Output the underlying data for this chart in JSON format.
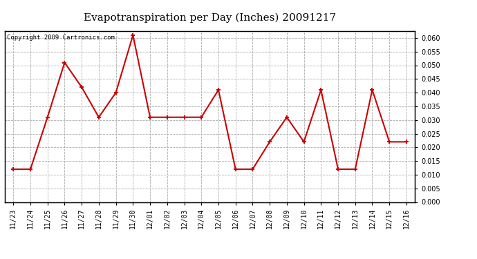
{
  "title": "Evapotranspiration per Day (Inches) 20091217",
  "copyright_text": "Copyright 2009 Cartronics.com",
  "x_labels": [
    "11/23",
    "11/24",
    "11/25",
    "11/26",
    "11/27",
    "11/28",
    "11/29",
    "11/30",
    "12/01",
    "12/02",
    "12/03",
    "12/04",
    "12/05",
    "12/06",
    "12/07",
    "12/08",
    "12/09",
    "12/10",
    "12/11",
    "12/12",
    "12/13",
    "12/14",
    "12/15",
    "12/16"
  ],
  "y_values": [
    0.012,
    0.012,
    0.031,
    0.051,
    0.042,
    0.031,
    0.04,
    0.061,
    0.031,
    0.031,
    0.031,
    0.031,
    0.041,
    0.012,
    0.012,
    0.022,
    0.031,
    0.022,
    0.041,
    0.012,
    0.012,
    0.041,
    0.022,
    0.022
  ],
  "line_color": "#cc0000",
  "marker": "+",
  "marker_size": 5,
  "marker_linewidth": 1.5,
  "linewidth": 1.5,
  "ylim": [
    0.0,
    0.0625
  ],
  "yticks": [
    0.0,
    0.005,
    0.01,
    0.015,
    0.02,
    0.025,
    0.03,
    0.035,
    0.04,
    0.045,
    0.05,
    0.055,
    0.06
  ],
  "background_color": "#ffffff",
  "plot_bg_color": "#ffffff",
  "grid_color": "#aaaaaa",
  "grid_style": "--",
  "title_fontsize": 11,
  "tick_fontsize": 7,
  "copyright_fontsize": 6.5,
  "title_font": "serif"
}
